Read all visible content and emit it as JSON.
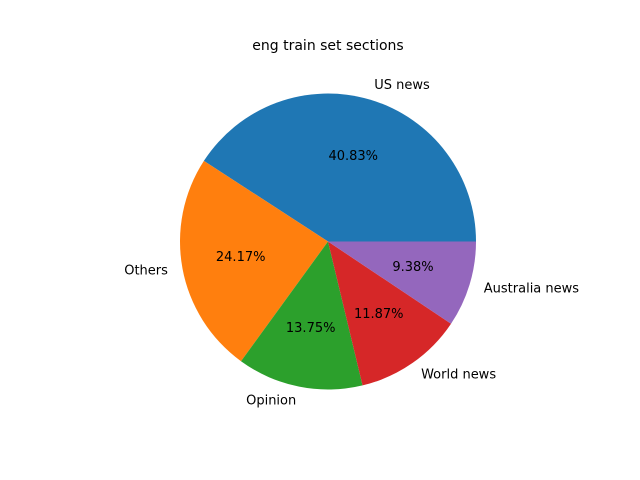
{
  "chart_data": {
    "type": "pie",
    "title": "eng train set sections",
    "categories": [
      "US news",
      "Others",
      "Opinion",
      "World news",
      "Australia news"
    ],
    "values": [
      40.83,
      24.17,
      13.75,
      11.87,
      9.38
    ],
    "percent_labels": [
      "40.83%",
      "24.17%",
      "13.75%",
      "11.87%",
      "9.38%"
    ],
    "colors": [
      "#1f77b4",
      "#ff7f0e",
      "#2ca02c",
      "#d62728",
      "#9467bd"
    ],
    "start_angle": 0,
    "direction": "counterclockwise",
    "legend": "none"
  }
}
